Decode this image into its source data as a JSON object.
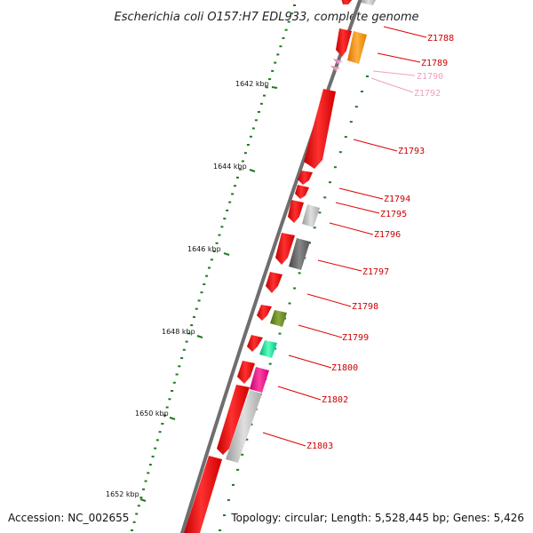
{
  "title": "Escherichia coli O157:H7 EDL933, complete genome",
  "footer": {
    "accession": "Accession: NC_002655",
    "summary": "Topology: circular; Length: 5,528,445 bp; Genes: 5,426"
  },
  "colors": {
    "backbone": "#6e6e6e",
    "tick": "#1e7a1e",
    "cds": "#ff0000",
    "label": "#cc0000"
  },
  "kbp_labels": [
    "1642 kbp",
    "1644 kbp",
    "1646 kbp",
    "1648 kbp",
    "1650 kbp",
    "1652 kbp"
  ],
  "gene_labels": [
    {
      "text": "Z1788",
      "color": "#cc0000"
    },
    {
      "text": "Z1789",
      "color": "#cc0000"
    },
    {
      "text": "Z1790",
      "color": "#f0a0c0"
    },
    {
      "text": "Z1792",
      "color": "#f0a0c0"
    },
    {
      "text": "Z1793",
      "color": "#cc0000"
    },
    {
      "text": "Z1794",
      "color": "#cc0000"
    },
    {
      "text": "Z1795",
      "color": "#cc0000"
    },
    {
      "text": "Z1796",
      "color": "#cc0000"
    },
    {
      "text": "Z1797",
      "color": "#cc0000"
    },
    {
      "text": "Z1798",
      "color": "#cc0000"
    },
    {
      "text": "Z1799",
      "color": "#cc0000"
    },
    {
      "text": "Z1800",
      "color": "#cc0000"
    },
    {
      "text": "Z1802",
      "color": "#cc0000"
    },
    {
      "text": "Z1803",
      "color": "#cc0000"
    }
  ]
}
